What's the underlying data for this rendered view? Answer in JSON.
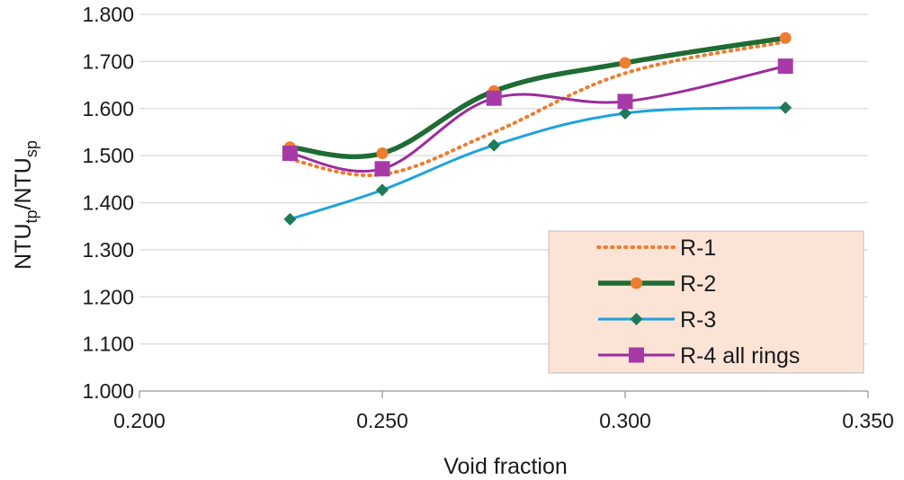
{
  "chart_data": {
    "type": "line",
    "x": [
      0.231,
      0.25,
      0.273,
      0.3,
      0.333
    ],
    "xlim": [
      0.2,
      0.35
    ],
    "ylim": [
      1.0,
      1.8
    ],
    "xticks": [
      0.2,
      0.25,
      0.3,
      0.35
    ],
    "yticks": [
      1.0,
      1.1,
      1.2,
      1.3,
      1.4,
      1.5,
      1.6,
      1.7,
      1.8
    ],
    "xtick_labels": [
      "0.200",
      "0.250",
      "0.300",
      "0.350"
    ],
    "ytick_labels": [
      "1.000",
      "1.100",
      "1.200",
      "1.300",
      "1.400",
      "1.500",
      "1.600",
      "1.700",
      "1.800"
    ],
    "xlabel": "Void fraction",
    "ylabel": {
      "main": "NTU",
      "sub1": "tp",
      "mid": "/NTU",
      "sub2": "sp"
    },
    "grid": "horizontal",
    "legend_position": "bottom-right",
    "series": [
      {
        "name": "R-1",
        "style": "dotted",
        "marker": "none",
        "color": "#ed7d31",
        "values": [
          1.492,
          1.46,
          1.55,
          1.675,
          1.742
        ]
      },
      {
        "name": "R-2",
        "style": "solid-thick",
        "marker": "circle",
        "color": "#1f6b34",
        "marker_color": "#ed7d31",
        "values": [
          1.518,
          1.505,
          1.637,
          1.697,
          1.75
        ]
      },
      {
        "name": "R-3",
        "style": "solid",
        "marker": "diamond",
        "color": "#1ea3dc",
        "marker_color": "#1f7a5a",
        "values": [
          1.365,
          1.427,
          1.522,
          1.59,
          1.602
        ]
      },
      {
        "name": "R-4 all rings",
        "style": "solid",
        "marker": "square",
        "color": "#9c2c9c",
        "marker_color": "#a83aa8",
        "values": [
          1.505,
          1.472,
          1.622,
          1.615,
          1.69
        ]
      }
    ]
  }
}
